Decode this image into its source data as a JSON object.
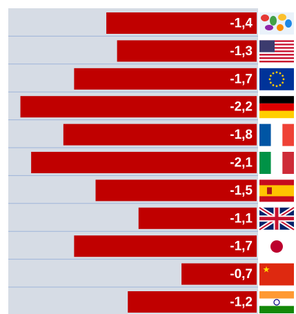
{
  "chart_data": {
    "type": "bar",
    "orientation": "horizontal",
    "categories": [
      null,
      null,
      null,
      null,
      null,
      null,
      null,
      null,
      null,
      null,
      null
    ],
    "values": [
      -1.4,
      -1.3,
      -1.7,
      -2.2,
      -1.8,
      -2.1,
      -1.5,
      -1.1,
      -1.7,
      -0.7,
      -1.2
    ],
    "value_labels": [
      "-1,4",
      "-1,3",
      "-1,7",
      "-2,2",
      "-1,8",
      "-2,1",
      "-1,5",
      "-1,1",
      "-1,7",
      "-0,7",
      "-1,2"
    ],
    "color": "#c00000",
    "xlim": [
      -2.3,
      0
    ]
  }
}
